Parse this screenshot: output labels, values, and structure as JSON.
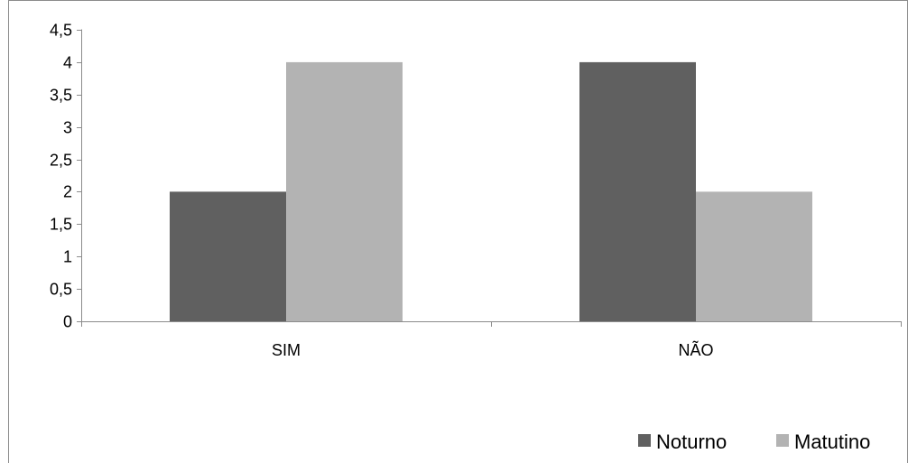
{
  "chart_data": {
    "type": "bar",
    "categories": [
      "SIM",
      "NÃO"
    ],
    "series": [
      {
        "name": "Noturno",
        "values": [
          2,
          4
        ],
        "color": "#606060"
      },
      {
        "name": "Matutino",
        "values": [
          4,
          2
        ],
        "color": "#b3b3b3"
      }
    ],
    "ylim": [
      0,
      4.5
    ],
    "yticks": [
      "0",
      "0,5",
      "1",
      "1,5",
      "2",
      "2,5",
      "3",
      "3,5",
      "4",
      "4,5"
    ],
    "ytick_values": [
      0,
      0.5,
      1,
      1.5,
      2,
      2.5,
      3,
      3.5,
      4,
      4.5
    ],
    "grid": false,
    "legend_position": "bottom-right",
    "title": "",
    "xlabel": "",
    "ylabel": ""
  }
}
